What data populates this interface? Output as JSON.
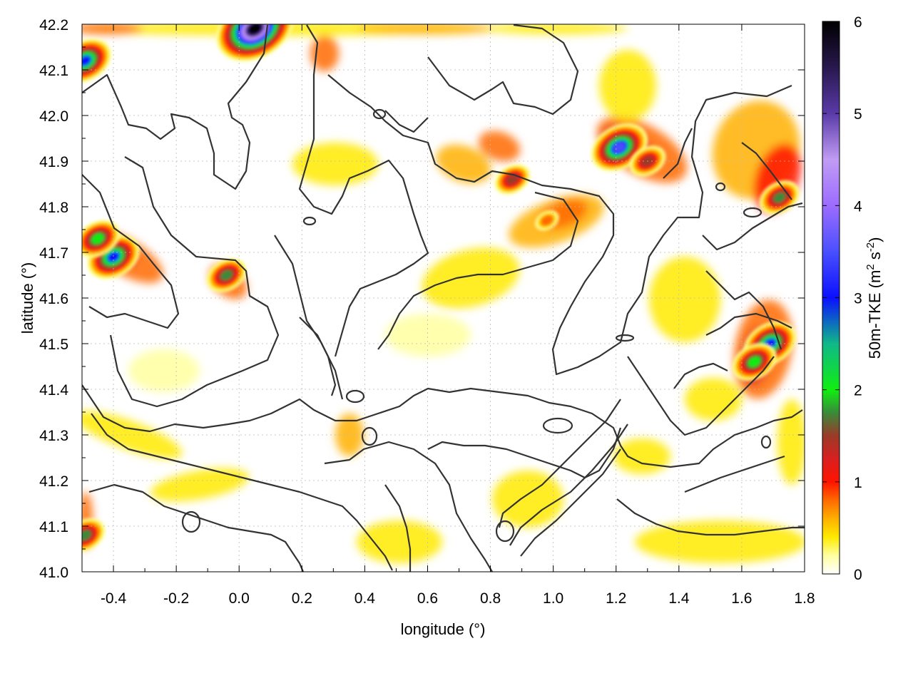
{
  "chart_data": {
    "type": "heatmap",
    "title": "",
    "xlabel": "longitude (°)",
    "ylabel": "latitude (°)",
    "colorbar_label_parts": {
      "main": "50m-TKE (m",
      "sup1": "2",
      "mid": " s",
      "sup2": "-2",
      "end": ")"
    },
    "xlim": [
      -0.5,
      1.8
    ],
    "ylim": [
      41.0,
      42.2
    ],
    "x_ticks": [
      {
        "value": -0.4,
        "label": "-0.4"
      },
      {
        "value": -0.2,
        "label": "-0.2"
      },
      {
        "value": 0.0,
        "label": "0.0"
      },
      {
        "value": 0.2,
        "label": "0.2"
      },
      {
        "value": 0.4,
        "label": "0.4"
      },
      {
        "value": 0.6,
        "label": "0.6"
      },
      {
        "value": 0.8,
        "label": "0.8"
      },
      {
        "value": 1.0,
        "label": "1.0"
      },
      {
        "value": 1.2,
        "label": "1.2"
      },
      {
        "value": 1.4,
        "label": "1.4"
      },
      {
        "value": 1.6,
        "label": "1.6"
      },
      {
        "value": 1.8,
        "label": "1.8"
      }
    ],
    "y_ticks": [
      {
        "value": 41.0,
        "label": "41.0"
      },
      {
        "value": 41.1,
        "label": "41.1"
      },
      {
        "value": 41.2,
        "label": "41.2"
      },
      {
        "value": 41.3,
        "label": "41.3"
      },
      {
        "value": 41.4,
        "label": "41.4"
      },
      {
        "value": 41.5,
        "label": "41.5"
      },
      {
        "value": 41.6,
        "label": "41.6"
      },
      {
        "value": 41.7,
        "label": "41.7"
      },
      {
        "value": 41.8,
        "label": "41.8"
      },
      {
        "value": 41.9,
        "label": "41.9"
      },
      {
        "value": 42.0,
        "label": "42.0"
      },
      {
        "value": 42.1,
        "label": "42.1"
      },
      {
        "value": 42.2,
        "label": "42.2"
      }
    ],
    "colorbar": {
      "range": [
        0,
        6
      ],
      "ticks": [
        {
          "value": 0,
          "label": "0"
        },
        {
          "value": 1,
          "label": "1"
        },
        {
          "value": 2,
          "label": "2"
        },
        {
          "value": 3,
          "label": "3"
        },
        {
          "value": 4,
          "label": "4"
        },
        {
          "value": 5,
          "label": "5"
        },
        {
          "value": 6,
          "label": "6"
        }
      ],
      "stops": [
        {
          "value": 0.0,
          "color": "#ffffff"
        },
        {
          "value": 0.2,
          "color": "#ffffa0"
        },
        {
          "value": 0.4,
          "color": "#ffea00"
        },
        {
          "value": 0.6,
          "color": "#ffb000"
        },
        {
          "value": 0.8,
          "color": "#ff6a00"
        },
        {
          "value": 1.0,
          "color": "#ff1400"
        },
        {
          "value": 1.25,
          "color": "#d82020"
        },
        {
          "value": 1.5,
          "color": "#9a3a28"
        },
        {
          "value": 1.75,
          "color": "#3a8a3a"
        },
        {
          "value": 2.0,
          "color": "#10ee10"
        },
        {
          "value": 2.5,
          "color": "#10b888"
        },
        {
          "value": 3.0,
          "color": "#0a10ff"
        },
        {
          "value": 3.5,
          "color": "#4a50ff"
        },
        {
          "value": 4.0,
          "color": "#9c6cff"
        },
        {
          "value": 4.5,
          "color": "#c09cf4"
        },
        {
          "value": 5.0,
          "color": "#5a3aa8"
        },
        {
          "value": 5.5,
          "color": "#28184e"
        },
        {
          "value": 6.0,
          "color": "#000000"
        }
      ]
    },
    "grid": true,
    "overlay": "terrain elevation contour lines (dark grey)",
    "hotspots": [
      {
        "lon": -0.4,
        "lat": 41.69,
        "tke": 3.0
      },
      {
        "lon": -0.45,
        "lat": 41.73,
        "tke": 2.0
      },
      {
        "lon": -0.04,
        "lat": 41.65,
        "tke": 1.8
      },
      {
        "lon": 1.21,
        "lat": 41.93,
        "tke": 3.5
      },
      {
        "lon": 1.3,
        "lat": 41.9,
        "tke": 1.5
      },
      {
        "lon": 1.69,
        "lat": 41.5,
        "tke": 3.4
      },
      {
        "lon": 1.64,
        "lat": 41.46,
        "tke": 2.0
      },
      {
        "lon": 0.05,
        "lat": 42.19,
        "tke": 6.0
      },
      {
        "lon": 0.98,
        "lat": 41.77,
        "tke": 0.9
      },
      {
        "lon": 1.72,
        "lat": 41.82,
        "tke": 1.8
      },
      {
        "lon": 0.87,
        "lat": 41.86,
        "tke": 1.6
      },
      {
        "lon": -0.49,
        "lat": 41.08,
        "tke": 1.8
      },
      {
        "lon": -0.49,
        "lat": 42.12,
        "tke": 3.0
      }
    ]
  }
}
